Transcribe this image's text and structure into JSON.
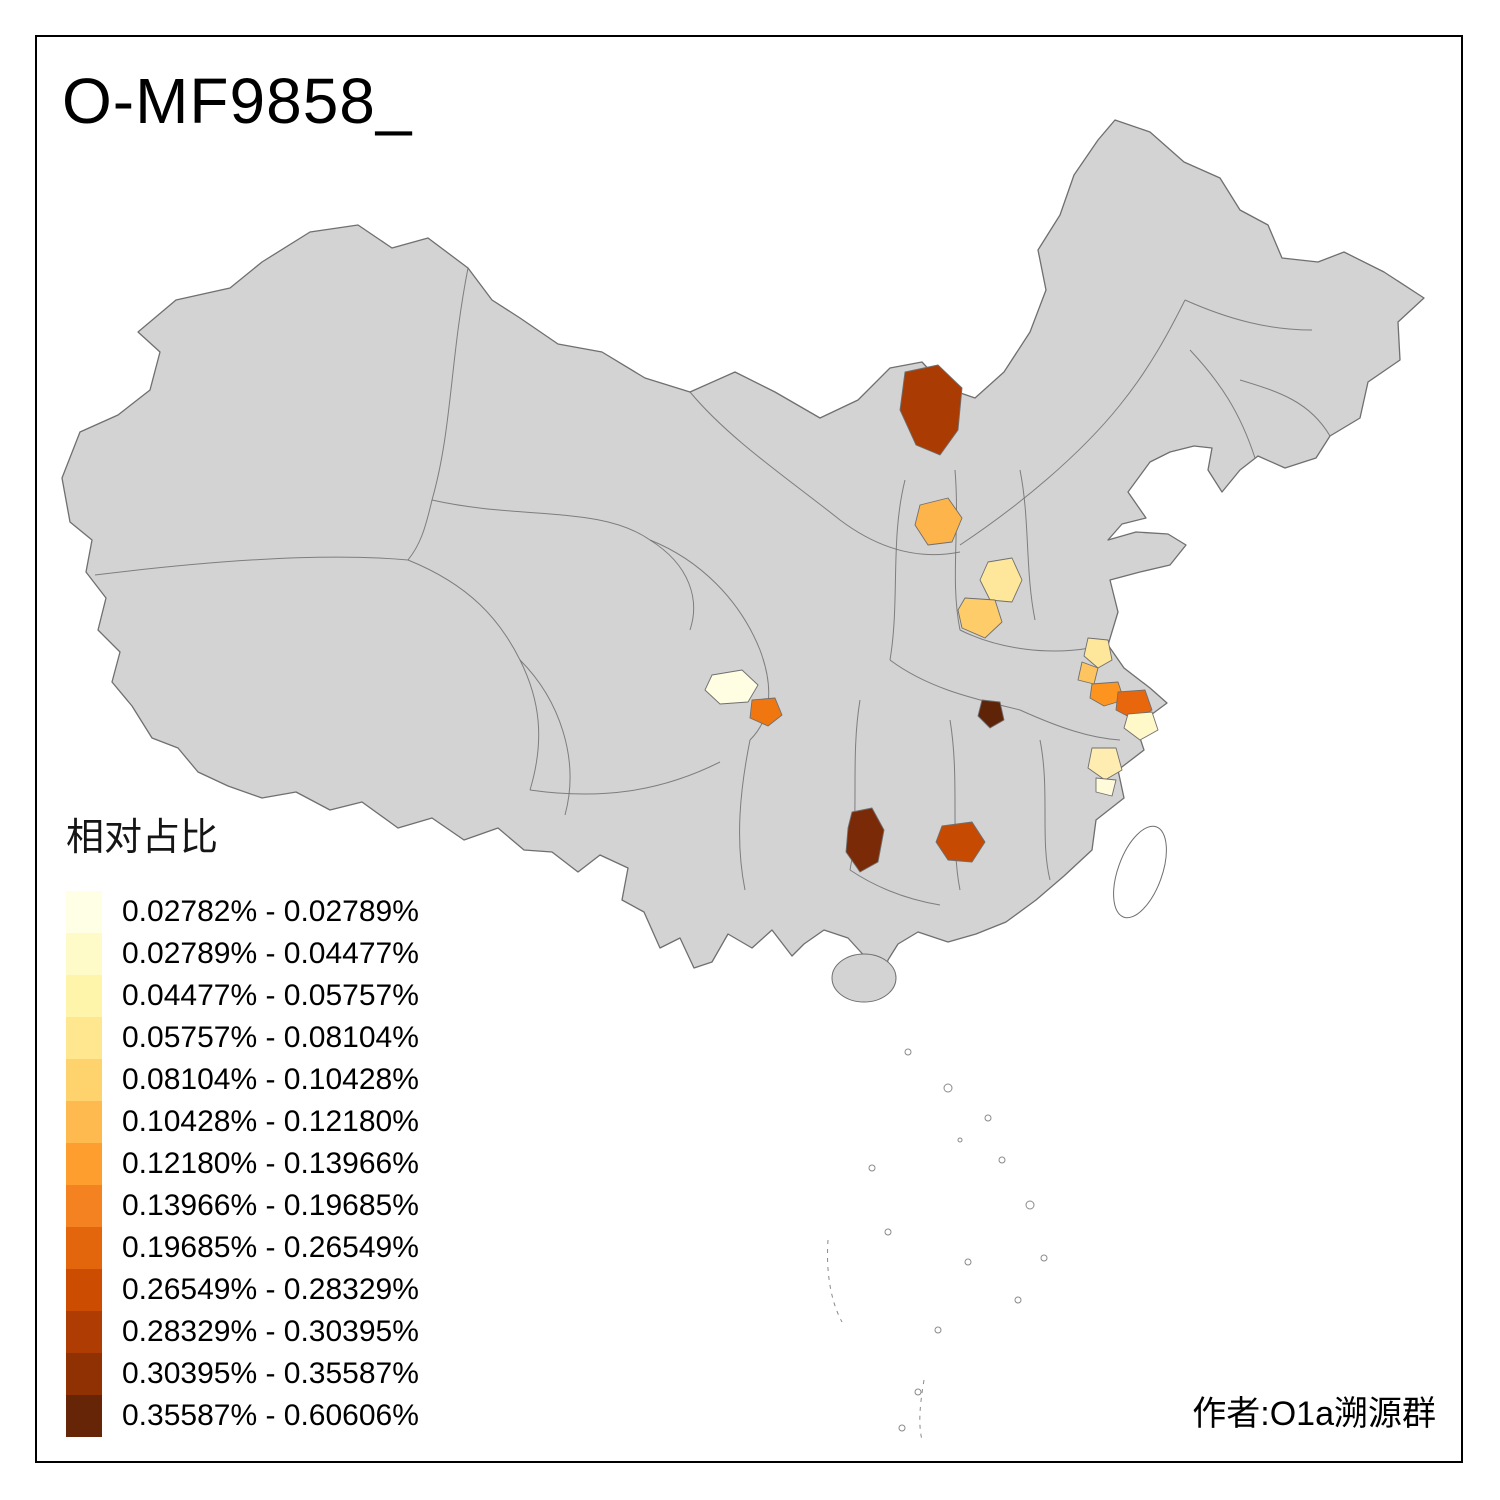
{
  "title": "O-MF9858_",
  "attribution": "作者:O1a溯源群",
  "legend": {
    "title": "相对占比",
    "items": [
      {
        "label": "0.02782% - 0.02789%",
        "color": "#FFFFE5"
      },
      {
        "label": "0.02789% - 0.04477%",
        "color": "#FFFBC8"
      },
      {
        "label": "0.04477% - 0.05757%",
        "color": "#FEF5AA"
      },
      {
        "label": "0.05757% - 0.08104%",
        "color": "#FEE78F"
      },
      {
        "label": "0.08104% - 0.10428%",
        "color": "#FED36D"
      },
      {
        "label": "0.10428% - 0.12180%",
        "color": "#FEBA4F"
      },
      {
        "label": "0.12180% - 0.13966%",
        "color": "#FE9E2E"
      },
      {
        "label": "0.13966% - 0.19685%",
        "color": "#F58220"
      },
      {
        "label": "0.19685% - 0.26549%",
        "color": "#E3660C"
      },
      {
        "label": "0.26549% - 0.28329%",
        "color": "#CC4C02"
      },
      {
        "label": "0.28329% - 0.30395%",
        "color": "#AF3D03"
      },
      {
        "label": "0.30395% - 0.35587%",
        "color": "#903103"
      },
      {
        "label": "0.35587% - 0.60606%",
        "color": "#662506"
      }
    ]
  },
  "map": {
    "land_color": "#d3d3d3",
    "border_color": "#6f6f6f",
    "background": "#ffffff",
    "regions": [
      {
        "name": "inner-mongolia-north",
        "color": "#A93B03"
      },
      {
        "name": "ningxia",
        "color": "#FDB44A"
      },
      {
        "name": "shanxi-south",
        "color": "#FEE79A"
      },
      {
        "name": "henan-west",
        "color": "#FECC68"
      },
      {
        "name": "chengdu",
        "color": "#FFFDE2"
      },
      {
        "name": "sichuan-east",
        "color": "#F0770F"
      },
      {
        "name": "hubei-east",
        "color": "#5F2407"
      },
      {
        "name": "jiangsu-north",
        "color": "#FEE79A"
      },
      {
        "name": "jiangsu-mid",
        "color": "#FEC45F"
      },
      {
        "name": "jiangsu-south",
        "color": "#FD9420"
      },
      {
        "name": "shanghai-west",
        "color": "#E8670D"
      },
      {
        "name": "shanghai-south",
        "color": "#FFF8C9"
      },
      {
        "name": "zhejiang-east",
        "color": "#FEECB0"
      },
      {
        "name": "zhejiang-south",
        "color": "#FFFBDA"
      },
      {
        "name": "guizhou",
        "color": "#7A2A06"
      },
      {
        "name": "hunan-south",
        "color": "#C64A02"
      }
    ]
  }
}
